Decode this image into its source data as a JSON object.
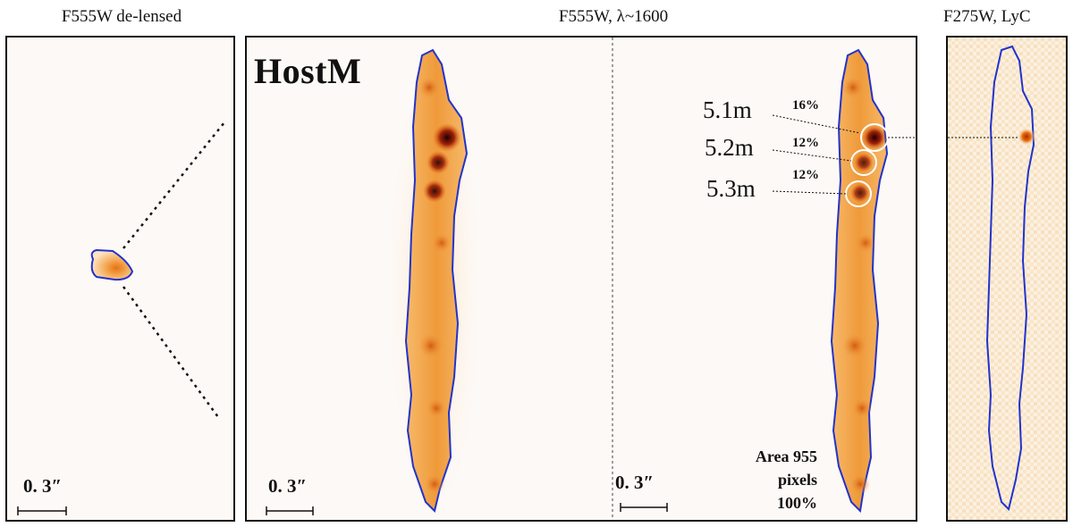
{
  "titles": {
    "left": "F555W de-lensed",
    "middle": "F555W, λ~1600",
    "right": "F275W, LyC"
  },
  "host_label": "HostM",
  "scale_bar_label": "0. 3″",
  "clumps": [
    {
      "name": "5.1m",
      "flux_pct": "16%"
    },
    {
      "name": "5.2m",
      "flux_pct": "12%"
    },
    {
      "name": "5.3m",
      "flux_pct": "12%"
    }
  ],
  "area": {
    "line1": "Area 955",
    "line2": "pixels",
    "line3": "100%"
  },
  "colors": {
    "contour": "#2233cc",
    "circle": "#ffffff",
    "frame": "#111111"
  }
}
